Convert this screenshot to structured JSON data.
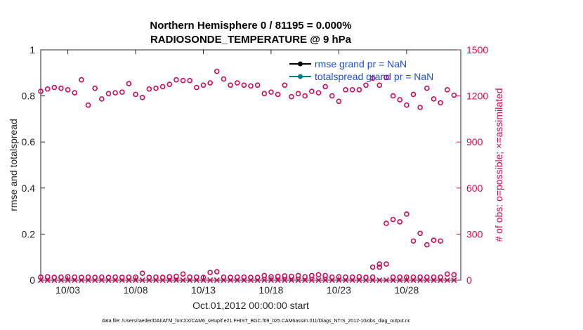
{
  "chart_data": {
    "type": "scatter",
    "title": "Northern Hemisphere 0 / 81195 = 0.000%",
    "subtitle": "RADIOSONDE_TEMPERATURE @ 9 hPa",
    "xlabel": "Oct.01,2012 00:00:00 start",
    "ylabel": "rmse and totalspread",
    "ylabel_right": "# of obs: o=possible; ×=assimilated",
    "xlim": [
      1,
      32
    ],
    "ylim": [
      0,
      1
    ],
    "ylim_right": [
      0,
      1500
    ],
    "x_ticks": [
      3,
      8,
      13,
      18,
      23,
      28
    ],
    "x_tick_labels": [
      "10/03",
      "10/08",
      "10/13",
      "10/18",
      "10/23",
      "10/28"
    ],
    "y_ticks": [
      0,
      0.2,
      0.4,
      0.6,
      0.8,
      1
    ],
    "y_tick_labels": [
      "0",
      "0.2",
      "0.4",
      "0.6",
      "0.8",
      "1"
    ],
    "y_right_ticks": [
      0,
      300,
      600,
      900,
      1200,
      1500
    ],
    "y_right_tick_labels": [
      "0",
      "300",
      "600",
      "900",
      "1200",
      "1500"
    ],
    "legend": [
      "rmse grand pr = NaN",
      "totalspread grand pr = NaN"
    ],
    "legend_position": "top-right",
    "grid": false,
    "colors": {
      "rmse": "#000000",
      "totalspread": "#008080",
      "obs": "#cc0a5a",
      "legend_text": "#1d4fd6"
    },
    "series": [
      {
        "kind": "possible-upper",
        "x": [
          1,
          1.5,
          2,
          2.5,
          3,
          3.5,
          4,
          4.5,
          5,
          5.5,
          6,
          6.5,
          7,
          7.5,
          8,
          8.5,
          9,
          9.5,
          10,
          10.5,
          11,
          11.5,
          12,
          12.5,
          13,
          13.5,
          14,
          14.5,
          15,
          15.5,
          16,
          16.5,
          17,
          17.5,
          18,
          18.5,
          19,
          19.5,
          20,
          20.5,
          21,
          21.5,
          22,
          22.5,
          23,
          23.5,
          24,
          24.5,
          25,
          25.5,
          26,
          26.5,
          27,
          27.5,
          28,
          28.5,
          29,
          29.5,
          30,
          30.5,
          31,
          31.5
        ],
        "values": [
          1230,
          1245,
          1255,
          1250,
          1240,
          1220,
          1305,
          1140,
          1250,
          1180,
          1215,
          1220,
          1225,
          1280,
          1210,
          1190,
          1245,
          1250,
          1260,
          1275,
          1305,
          1300,
          1300,
          1255,
          1270,
          1285,
          1360,
          1310,
          1270,
          1285,
          1270,
          1265,
          1270,
          1215,
          1225,
          1210,
          1270,
          1195,
          1215,
          1200,
          1230,
          1220,
          1260,
          1200,
          1165,
          1240,
          1240,
          1240,
          1270,
          1315,
          1270,
          1320,
          1200,
          1175,
          1140,
          1210,
          1125,
          1250,
          1180,
          1155,
          1240,
          1205
        ]
      },
      {
        "kind": "possible-lower",
        "x": [
          1,
          1.5,
          2,
          2.5,
          3,
          3.5,
          4,
          4.5,
          5,
          5.5,
          6,
          6.5,
          7,
          7.5,
          8,
          8.5,
          9,
          9.5,
          10,
          10.5,
          11,
          11.5,
          12,
          12.5,
          13,
          13.5,
          14,
          14.5,
          15,
          15.5,
          16,
          16.5,
          17,
          17.5,
          18,
          18.5,
          19,
          19.5,
          20,
          20.5,
          21,
          21.5,
          22,
          22.5,
          23,
          23.5,
          24,
          24.5,
          25,
          25.5,
          26,
          26.5,
          27,
          27.5,
          28,
          28.5,
          29,
          29.5,
          30,
          30.5,
          31,
          31.5
        ],
        "values": [
          20,
          22,
          18,
          20,
          22,
          20,
          18,
          20,
          18,
          20,
          18,
          20,
          18,
          20,
          20,
          45,
          18,
          20,
          18,
          22,
          25,
          40,
          20,
          20,
          18,
          50,
          55,
          20,
          18,
          20,
          20,
          18,
          18,
          30,
          22,
          25,
          28,
          25,
          30,
          22,
          30,
          35,
          30,
          20,
          22,
          20,
          20,
          22,
          18,
          20,
          85,
          105,
          20,
          20,
          20,
          20,
          20,
          20,
          20,
          20,
          40,
          35
        ],
        "x_extra": [
          25.5,
          26,
          26.5,
          27,
          27.5,
          28,
          28.5,
          29,
          29.5,
          30,
          30.5
        ],
        "values_extra": [
          85,
          105,
          370,
          395,
          380,
          430,
          255,
          305,
          230,
          260,
          255
        ]
      },
      {
        "kind": "assimilated",
        "x": [
          1,
          1.5,
          2,
          2.5,
          3,
          3.5,
          4,
          4.5,
          5,
          5.5,
          6,
          6.5,
          7,
          7.5,
          8,
          8.5,
          9,
          9.5,
          10,
          10.5,
          11,
          11.5,
          12,
          12.5,
          13,
          13.5,
          14,
          14.5,
          15,
          15.5,
          16,
          16.5,
          17,
          17.5,
          18,
          18.5,
          19,
          19.5,
          20,
          20.5,
          21,
          21.5,
          22,
          22.5,
          23,
          23.5,
          24,
          24.5,
          25,
          25.5,
          26,
          26.5,
          27,
          27.5,
          28,
          28.5,
          29,
          29.5,
          30,
          30.5,
          31,
          31.5
        ],
        "values": [
          0,
          0,
          0,
          0,
          0,
          0,
          0,
          0,
          0,
          0,
          0,
          0,
          0,
          0,
          0,
          0,
          0,
          0,
          0,
          0,
          0,
          0,
          0,
          0,
          0,
          0,
          0,
          0,
          0,
          0,
          0,
          0,
          0,
          0,
          0,
          0,
          0,
          0,
          0,
          0,
          0,
          0,
          0,
          0,
          0,
          0,
          0,
          0,
          0,
          0,
          0,
          0,
          0,
          0,
          0,
          0,
          0,
          0,
          0,
          0,
          0,
          0
        ]
      }
    ]
  },
  "footer": "data file: /Users/raeder/DAI/ATM_forcXX/CAM6_setup/f.e21.FHIST_BGC.f09_025.CAM6assim.011/Diags_NTrS_2012-10/obs_diag_output.nc"
}
